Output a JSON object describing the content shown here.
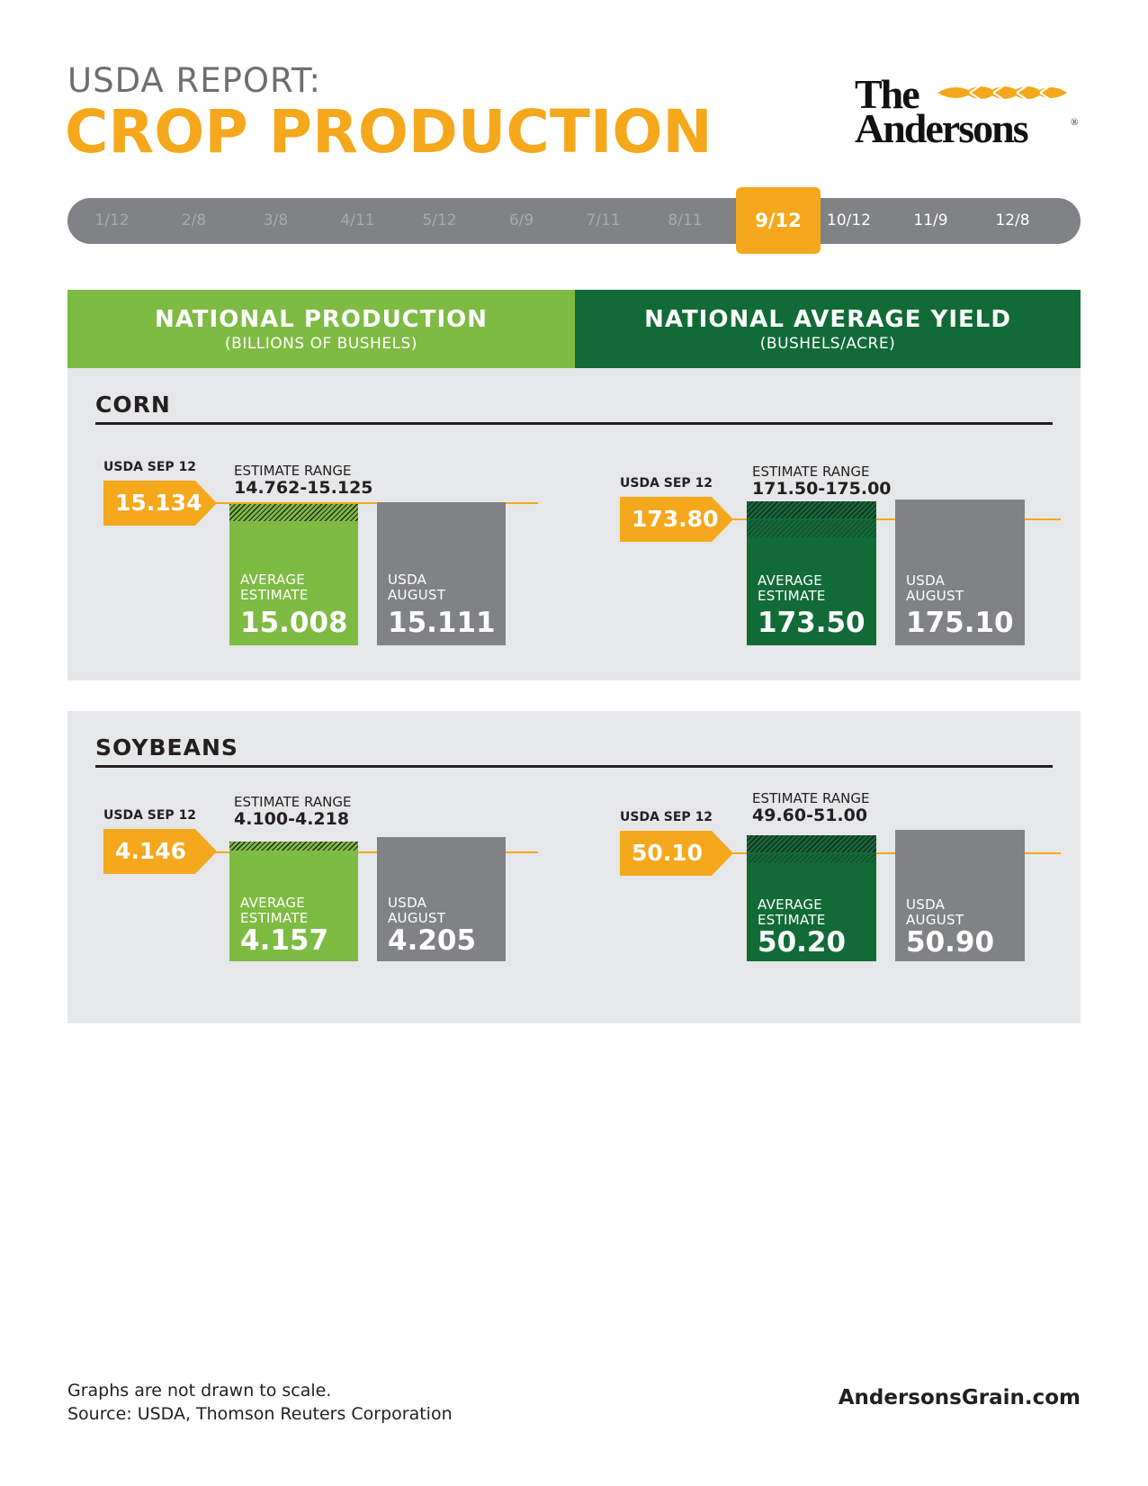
{
  "header": {
    "pre_title": "USDA REPORT:",
    "title": "CROP PRODUCTION",
    "logo_line1": "The",
    "logo_line2": "Andersons",
    "logo_reg": "®"
  },
  "timeline": {
    "dates": [
      "1/12",
      "2/8",
      "3/8",
      "4/11",
      "5/12",
      "6/9",
      "7/11",
      "8/11",
      "9/12",
      "10/12",
      "11/9",
      "12/8"
    ],
    "active": "9/12"
  },
  "columns": {
    "left_title": "NATIONAL PRODUCTION",
    "left_sub": "(BILLIONS OF BUSHELS)",
    "right_title": "NATIONAL AVERAGE YIELD",
    "right_sub": "(BUSHELS/ACRE)"
  },
  "labels": {
    "usda_sep": "USDA SEP 12",
    "estimate_range": "ESTIMATE RANGE",
    "avg_line1": "AVERAGE",
    "avg_line2": "ESTIMATE",
    "usda_line1": "USDA",
    "usda_line2": "AUGUST"
  },
  "chart_data": [
    {
      "type": "bar",
      "crop": "CORN",
      "metric": "NATIONAL PRODUCTION",
      "usda_sep12": "15.134",
      "estimate_range": "14.762-15.125",
      "categories": [
        "AVERAGE ESTIMATE",
        "USDA AUGUST"
      ],
      "values": [
        "15.008",
        "15.111"
      ]
    },
    {
      "type": "bar",
      "crop": "CORN",
      "metric": "NATIONAL AVERAGE YIELD",
      "usda_sep12": "173.80",
      "estimate_range": "171.50-175.00",
      "categories": [
        "AVERAGE ESTIMATE",
        "USDA AUGUST"
      ],
      "values": [
        "173.50",
        "175.10"
      ]
    },
    {
      "type": "bar",
      "crop": "SOYBEANS",
      "metric": "NATIONAL PRODUCTION",
      "usda_sep12": "4.146",
      "estimate_range": "4.100-4.218",
      "categories": [
        "AVERAGE ESTIMATE",
        "USDA AUGUST"
      ],
      "values": [
        "4.157",
        "4.205"
      ]
    },
    {
      "type": "bar",
      "crop": "SOYBEANS",
      "metric": "NATIONAL AVERAGE YIELD",
      "usda_sep12": "50.10",
      "estimate_range": "49.60-51.00",
      "categories": [
        "AVERAGE ESTIMATE",
        "USDA AUGUST"
      ],
      "values": [
        "50.20",
        "50.90"
      ]
    }
  ],
  "colors": {
    "orange": "#f5a81c",
    "light_green": "#7dbb42",
    "dark_green": "#116b37",
    "gray": "#808285"
  },
  "footer": {
    "note": "Graphs are not drawn to scale.",
    "source": "Source: USDA, Thomson Reuters Corporation",
    "site": "AndersonsGrain.com"
  }
}
